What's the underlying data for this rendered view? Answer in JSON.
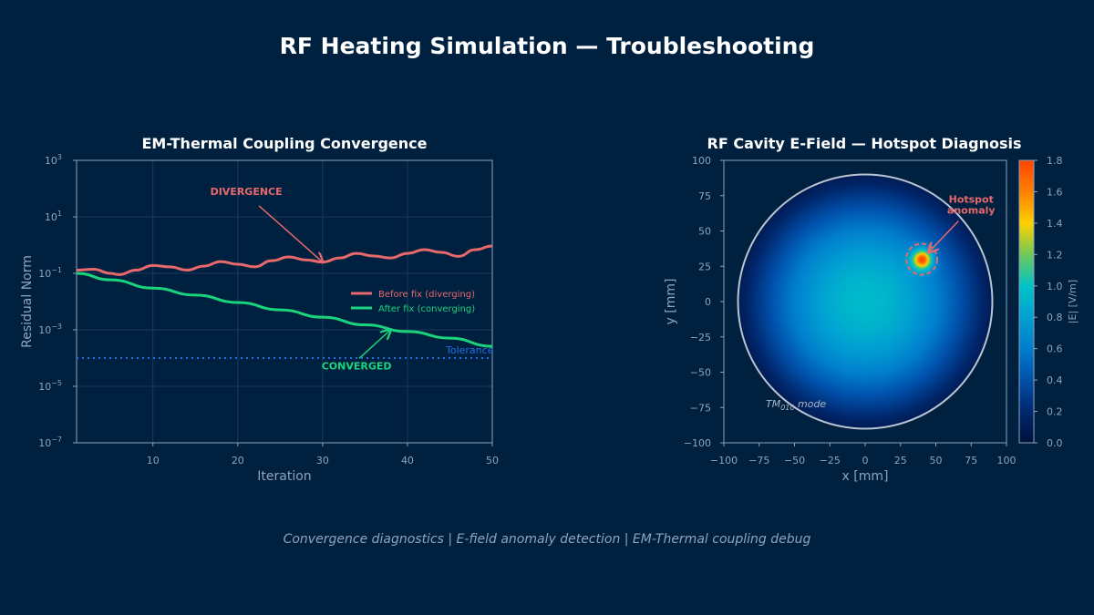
{
  "title": "RF Heating Simulation — Troubleshooting",
  "footer": "Convergence diagnostics  |  E-field anomaly detection  |  EM-Thermal coupling debug",
  "chart_data": [
    {
      "type": "line",
      "title": "EM-Thermal Coupling Convergence",
      "xlabel": "Iteration",
      "ylabel": "Residual Norm",
      "xlim": [
        1,
        50
      ],
      "ylim": [
        1e-07,
        1000
      ],
      "yscale": "log",
      "grid": true,
      "legend": "center-right",
      "xticks": [
        "10",
        "20",
        "30",
        "40",
        "50"
      ],
      "xtick_values": [
        10,
        20,
        30,
        40,
        50
      ],
      "yticks": [
        {
          "base": "10",
          "exp": "3",
          "v": 3
        },
        {
          "base": "10",
          "exp": "1",
          "v": 1
        },
        {
          "base": "10",
          "exp": "−1",
          "v": -1
        },
        {
          "base": "10",
          "exp": "−3",
          "v": -3
        },
        {
          "base": "10",
          "exp": "−5",
          "v": -5
        },
        {
          "base": "10",
          "exp": "−7",
          "v": -7
        }
      ],
      "series": [
        {
          "name": "Before fix (diverging)",
          "color": "#e8696b",
          "x": [
            1,
            3,
            5,
            6,
            8,
            10,
            12,
            14,
            16,
            18,
            20,
            22,
            24,
            26,
            28,
            30,
            32,
            34,
            36,
            38,
            40,
            42,
            44,
            46,
            48,
            50
          ],
          "y": [
            0.13,
            0.14,
            0.1,
            0.09,
            0.13,
            0.19,
            0.17,
            0.13,
            0.18,
            0.26,
            0.21,
            0.17,
            0.28,
            0.38,
            0.3,
            0.25,
            0.35,
            0.51,
            0.41,
            0.35,
            0.51,
            0.69,
            0.55,
            0.4,
            0.69,
            0.93
          ]
        },
        {
          "name": "After fix (converging)",
          "color": "#19d47c",
          "x": [
            1,
            5,
            10,
            15,
            20,
            25,
            30,
            35,
            40,
            45,
            50
          ],
          "y": [
            0.1,
            0.059,
            0.03,
            0.017,
            0.0093,
            0.0051,
            0.0028,
            0.0015,
            0.00087,
            0.00051,
            0.00026
          ]
        }
      ],
      "tolerance": {
        "label": "Tolerance",
        "value": 0.0001,
        "color": "#1f6fe0"
      },
      "annotations": [
        {
          "text": "DIVERGENCE",
          "color": "#e8696b",
          "text_at": [
            21,
            60
          ],
          "arrow_to": [
            30,
            0.25
          ]
        },
        {
          "text": "CONVERGED",
          "color": "#19d47c",
          "text_at": [
            34,
            4e-05
          ],
          "arrow_to": [
            38,
            0.001
          ]
        }
      ]
    },
    {
      "type": "heatmap",
      "title": "RF Cavity E-Field — Hotspot Diagnosis",
      "xlabel": "x [mm]",
      "ylabel": "y [mm]",
      "xlim": [
        -100,
        100
      ],
      "ylim": [
        -100,
        100
      ],
      "ticks": [
        "−100",
        "−75",
        "−50",
        "−25",
        "0",
        "25",
        "50",
        "75",
        "100"
      ],
      "tick_values": [
        -100,
        -75,
        -50,
        -25,
        0,
        25,
        50,
        75,
        100
      ],
      "cavity_radius": 90,
      "center_value": 0.95,
      "hotspot": {
        "x": 40,
        "y": 30,
        "peak": 1.8
      },
      "mode_label": {
        "main": "TM",
        "sub": "010",
        "rest": " mode"
      },
      "annotation": {
        "text": [
          "Hotspot",
          "anomaly"
        ],
        "color": "#e8696b",
        "text_at": [
          75,
          70
        ],
        "arrow_to": [
          45,
          35
        ]
      },
      "colorbar": {
        "label": "|E| [V/m]",
        "range": [
          0,
          1.8
        ],
        "ticks": [
          "0.0",
          "0.2",
          "0.4",
          "0.6",
          "0.8",
          "1.0",
          "1.2",
          "1.4",
          "1.6",
          "1.8"
        ],
        "colormap": "jet"
      }
    }
  ]
}
